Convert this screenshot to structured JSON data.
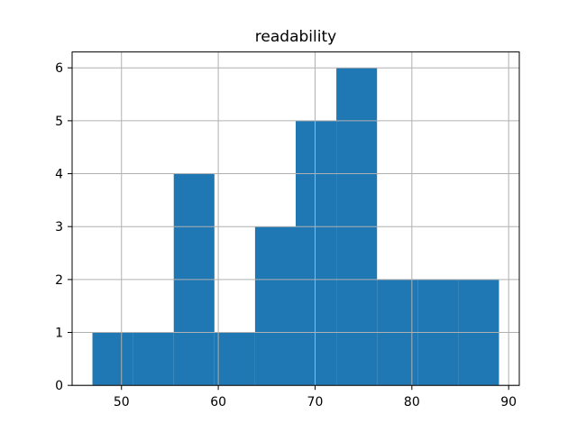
{
  "chart_data": {
    "type": "bar",
    "subtype": "histogram",
    "title": "readability",
    "bin_edges": [
      47.0,
      51.2,
      55.4,
      59.6,
      63.8,
      68.0,
      72.2,
      76.4,
      80.6,
      84.8,
      89.0
    ],
    "counts": [
      1,
      1,
      4,
      1,
      3,
      5,
      6,
      2,
      2,
      2
    ],
    "xticks": [
      50,
      60,
      70,
      80,
      90
    ],
    "yticks": [
      0,
      1,
      2,
      3,
      4,
      5,
      6
    ],
    "xlim": [
      44.9,
      91.1
    ],
    "ylim": [
      0,
      6.3
    ],
    "xlabel": "",
    "ylabel": "",
    "grid": true,
    "legend": false,
    "bar_color": "#1f77b4",
    "grid_color": "#b0b0b0",
    "axis_color": "#000000",
    "text_color": "#000000",
    "background_color": "#ffffff"
  }
}
